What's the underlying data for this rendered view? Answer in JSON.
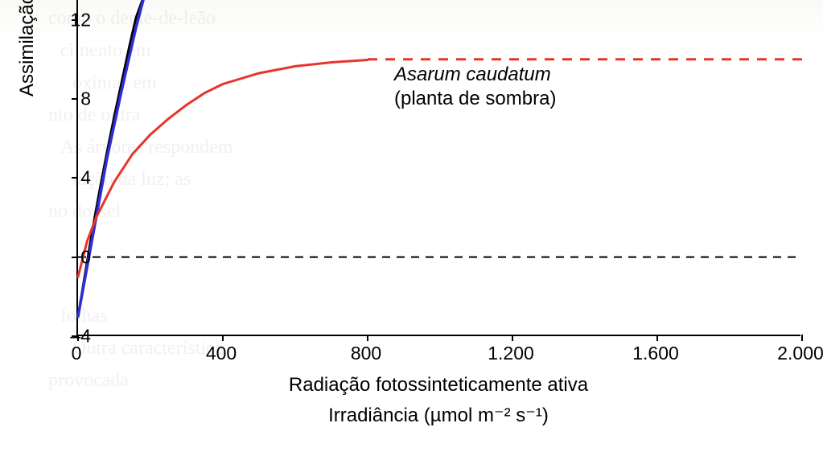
{
  "chart": {
    "type": "line",
    "background_color": "#f9f9f6",
    "plot_bg": "#ffffff",
    "axis_color": "#000000",
    "axis_width": 2,
    "font_family": "Arial",
    "ylabel": "Assimilação fotossin",
    "ylabel_fontsize": 24,
    "xlabel": "Radiação fotossinteticamente ativa",
    "xlabel_fontsize": 24,
    "x_sublabel": "Irradiância (µmol m⁻² s⁻¹)",
    "x_sublabel_fontsize": 24,
    "xlim": [
      0,
      2000
    ],
    "ylim": [
      -4,
      13
    ],
    "xticks": [
      0,
      400,
      800,
      1200,
      1600,
      2000
    ],
    "xtick_labels": [
      "0",
      "400",
      "800",
      "1.200",
      "1.600",
      "2.000"
    ],
    "yticks": [
      -4,
      0,
      4,
      8,
      12
    ],
    "ytick_labels": [
      "–4",
      "0",
      "4",
      "8",
      "12"
    ],
    "tick_fontsize": 23,
    "series": {
      "asarum": {
        "name": "Asarum caudatum",
        "subtitle": "(planta de sombra)",
        "label_italic": true,
        "label_fontsize": 24,
        "color": "#e7352b",
        "width": 3,
        "asymptote": {
          "y": 10,
          "x_start": 800,
          "x_end": 2000,
          "dash": "12,10",
          "color": "#e7352b",
          "width": 3
        },
        "points": [
          [
            0,
            -1.0
          ],
          [
            25,
            0.8
          ],
          [
            50,
            2.0
          ],
          [
            100,
            3.8
          ],
          [
            150,
            5.2
          ],
          [
            200,
            6.2
          ],
          [
            250,
            7.0
          ],
          [
            300,
            7.7
          ],
          [
            350,
            8.3
          ],
          [
            400,
            8.75
          ],
          [
            500,
            9.3
          ],
          [
            600,
            9.65
          ],
          [
            700,
            9.85
          ],
          [
            800,
            9.97
          ]
        ]
      },
      "sun_plant_blue": {
        "color": "#2e2fd5",
        "width": 3.5,
        "points": [
          [
            0,
            -3.0
          ],
          [
            20,
            -1.0
          ],
          [
            40,
            1.0
          ],
          [
            60,
            3.0
          ],
          [
            80,
            5.0
          ],
          [
            100,
            6.7
          ],
          [
            120,
            8.4
          ],
          [
            140,
            10.0
          ],
          [
            160,
            11.6
          ],
          [
            180,
            13.0
          ]
        ]
      },
      "sun_plant_black": {
        "color": "#000000",
        "width": 3,
        "points": [
          [
            0,
            -3.0
          ],
          [
            20,
            -0.8
          ],
          [
            40,
            1.4
          ],
          [
            60,
            3.4
          ],
          [
            80,
            5.3
          ],
          [
            100,
            7.1
          ],
          [
            120,
            8.8
          ],
          [
            140,
            10.5
          ],
          [
            160,
            12.1
          ],
          [
            178,
            13.0
          ]
        ]
      }
    },
    "zero_line": {
      "y": 0,
      "color": "#000000",
      "dash": "10,8",
      "width": 2,
      "x_start": 0,
      "x_end": 2000
    }
  },
  "ghost": {
    "lines": [
      "como o dente-de-leão",
      "cimento em",
      "óximas em",
      "nto de outra",
      "As árvores respondem",
      "tação da luz; as",
      "no dossel",
      "folhas",
      "Outra característica",
      "provocada"
    ]
  }
}
